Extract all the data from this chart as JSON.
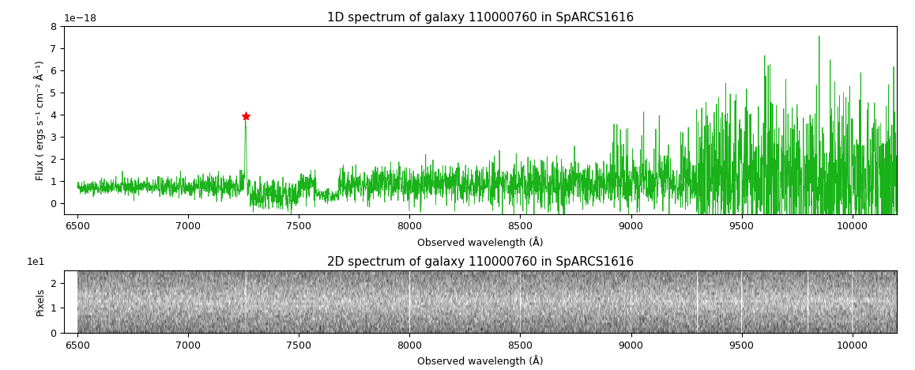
{
  "title_1d": "1D spectrum of galaxy 110000760 in SpARCS1616",
  "title_2d": "2D spectrum of galaxy 110000760 in SpARCS1616",
  "xlabel": "Observed wavelength (Å)",
  "ylabel": "Flux ( ergs s⁻¹ cm⁻² Å⁻¹)",
  "ylabel_2d": "Pixels",
  "xmin": 6390,
  "xmax": 10200,
  "ymin": -5e-19,
  "ymax": 8e-18,
  "xticks": [
    6500,
    7000,
    7500,
    8000,
    8500,
    9000,
    9500,
    10000
  ],
  "scale_factor": 1e-18,
  "emission_line_x": 7260,
  "emission_line_y": 3.9e-18,
  "line_color": "#00aa00",
  "marker_color": "red",
  "background_color": "white"
}
